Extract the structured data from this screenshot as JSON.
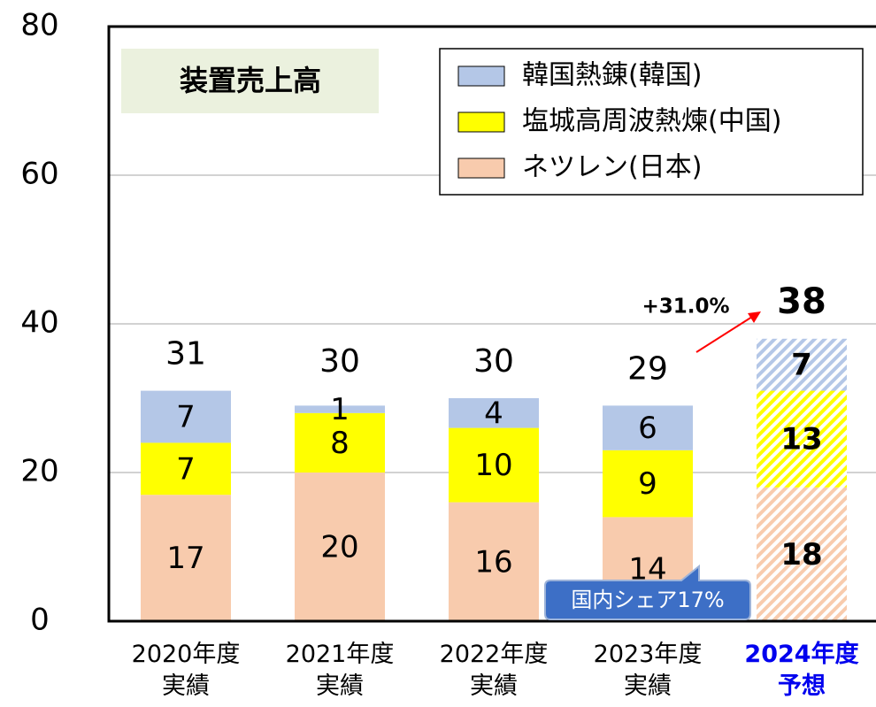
{
  "chart_data": {
    "type": "bar",
    "stacked": true,
    "title": "装置売上高",
    "categories": [
      "2020年度\n実績",
      "2021年度\n実績",
      "2022年度\n実績",
      "2023年度\n実績",
      "2024年度\n予想"
    ],
    "series": [
      {
        "name": "ネツレン(日本)",
        "color": "#f8cbad",
        "values": [
          17,
          20,
          16,
          14,
          18
        ]
      },
      {
        "name": "塩城高周波熱煉(中国)",
        "color": "#ffff00",
        "values": [
          7,
          8,
          10,
          9,
          13
        ]
      },
      {
        "name": "韓国熱錬(韓国)",
        "color": "#b4c7e7",
        "values": [
          7,
          1,
          4,
          6,
          7
        ]
      }
    ],
    "totals": [
      31,
      30,
      30,
      29,
      38
    ],
    "ylim": [
      0,
      80
    ],
    "yticks": [
      0,
      20,
      40,
      60,
      80
    ],
    "grid": true,
    "legend": "upper right",
    "forecast_index": 4,
    "annotations": {
      "growth": "+31.0%",
      "callout": "国内シェア17%"
    }
  }
}
